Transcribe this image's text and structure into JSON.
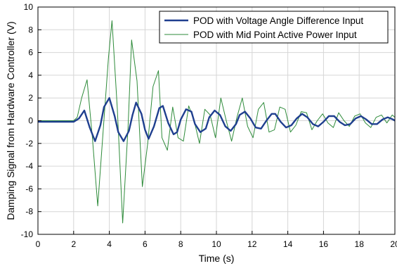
{
  "chart_data": {
    "type": "line",
    "title": "",
    "xlabel": "Time (s)",
    "ylabel": "Damping Signal from Hardware Controller (V)",
    "xlim": [
      0,
      20
    ],
    "ylim": [
      -10,
      10
    ],
    "xticks": [
      0,
      2,
      4,
      6,
      8,
      10,
      12,
      14,
      16,
      18,
      20
    ],
    "yticks": [
      -10,
      -8,
      -6,
      -4,
      -2,
      0,
      2,
      4,
      6,
      8,
      10
    ],
    "xtick_labels": [
      "0",
      "2",
      "4",
      "6",
      "8",
      "10",
      "12",
      "14",
      "16",
      "18",
      "20"
    ],
    "ytick_labels": [
      "-10",
      "-8",
      "-6",
      "-4",
      "-2",
      "0",
      "2",
      "4",
      "6",
      "8",
      "10"
    ],
    "grid": true,
    "legend_position": "top-right",
    "series": [
      {
        "name": "POD with Voltage Angle Difference Input",
        "color": "#1f3f8f",
        "style": "thick",
        "x": [
          0,
          2.0,
          2.3,
          2.6,
          2.9,
          3.2,
          3.5,
          3.7,
          4.0,
          4.3,
          4.5,
          4.8,
          5.1,
          5.3,
          5.5,
          5.8,
          6.0,
          6.2,
          6.5,
          6.8,
          7.0,
          7.3,
          7.6,
          7.8,
          8.0,
          8.3,
          8.6,
          8.8,
          9.1,
          9.4,
          9.6,
          9.9,
          10.2,
          10.5,
          10.8,
          11.1,
          11.3,
          11.6,
          11.9,
          12.2,
          12.5,
          12.8,
          13.1,
          13.3,
          13.6,
          13.9,
          14.2,
          14.5,
          14.8,
          15.1,
          15.4,
          15.7,
          16.0,
          16.3,
          16.6,
          16.9,
          17.2,
          17.5,
          17.8,
          18.1,
          18.4,
          18.7,
          19.0,
          19.3,
          19.6,
          19.9,
          20.0
        ],
        "y": [
          -0.1,
          -0.1,
          0.2,
          0.9,
          -0.6,
          -1.8,
          -0.4,
          1.2,
          2.0,
          0.4,
          -1.0,
          -1.8,
          -0.9,
          0.5,
          1.6,
          0.6,
          -0.8,
          -1.6,
          -0.5,
          1.1,
          1.3,
          -0.2,
          -1.2,
          -1.0,
          0.1,
          1.0,
          0.8,
          -0.3,
          -1.0,
          -0.7,
          0.3,
          0.9,
          0.5,
          -0.5,
          -0.9,
          -0.3,
          0.5,
          0.8,
          0.2,
          -0.6,
          -0.7,
          0.0,
          0.6,
          0.6,
          -0.1,
          -0.6,
          -0.4,
          0.2,
          0.6,
          0.3,
          -0.3,
          -0.5,
          -0.1,
          0.4,
          0.4,
          -0.1,
          -0.4,
          -0.3,
          0.2,
          0.4,
          0.1,
          -0.3,
          -0.3,
          0.1,
          0.3,
          0.1,
          0.0
        ]
      },
      {
        "name": "POD with Mid Point Active Power Input",
        "color": "#2e8b3a",
        "style": "thin",
        "x": [
          0,
          2.0,
          2.2,
          2.45,
          2.75,
          3.05,
          3.35,
          3.65,
          3.95,
          4.15,
          4.45,
          4.75,
          5.05,
          5.25,
          5.55,
          5.85,
          6.15,
          6.45,
          6.75,
          6.95,
          7.25,
          7.55,
          7.85,
          8.15,
          8.45,
          8.75,
          9.05,
          9.35,
          9.65,
          9.95,
          10.25,
          10.55,
          10.85,
          11.15,
          11.45,
          11.75,
          12.05,
          12.35,
          12.65,
          12.95,
          13.25,
          13.55,
          13.85,
          14.15,
          14.45,
          14.75,
          15.05,
          15.35,
          15.65,
          15.95,
          16.25,
          16.55,
          16.85,
          17.15,
          17.45,
          17.75,
          18.05,
          18.35,
          18.65,
          18.95,
          19.25,
          19.55,
          19.85,
          20.0
        ],
        "y": [
          0,
          0,
          0.3,
          2.0,
          3.6,
          -1.5,
          -7.5,
          -1.0,
          5.5,
          8.8,
          1.0,
          -9.0,
          -0.5,
          7.1,
          3.5,
          -5.8,
          -2.0,
          3.0,
          4.4,
          -1.5,
          -2.6,
          1.2,
          -1.5,
          -1.8,
          1.3,
          0.0,
          -2.0,
          1.0,
          0.5,
          -1.5,
          2.0,
          0.0,
          -1.8,
          0.3,
          2.0,
          -0.5,
          -1.5,
          1.0,
          1.6,
          -1.0,
          -0.8,
          1.2,
          1.0,
          -1.0,
          -0.4,
          0.8,
          0.7,
          -0.8,
          0.0,
          0.6,
          -0.2,
          -0.6,
          0.7,
          0.0,
          -0.5,
          0.4,
          0.6,
          -0.2,
          -0.6,
          0.3,
          0.5,
          -0.2,
          0.5,
          0.3
        ]
      }
    ]
  }
}
